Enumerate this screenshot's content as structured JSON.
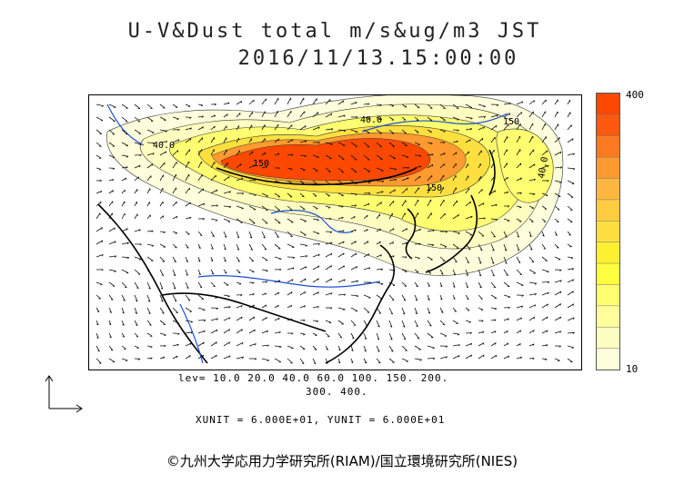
{
  "title": {
    "line1": "U-V&Dust total m/s&ug/m3 JST",
    "line2": "2016/11/13.15:00:00"
  },
  "colorbar": {
    "max_label": "400",
    "min_label": "10",
    "colors": [
      "#fefedc",
      "#fefec0",
      "#fefe9a",
      "#fefe70",
      "#fefe40",
      "#fdf030",
      "#fde040",
      "#fdcc40",
      "#fdb640",
      "#fd9a30",
      "#fd7a20",
      "#fd5a10",
      "#fc4800"
    ]
  },
  "legend": {
    "levels_line1": "lev= 10.0 20.0 40.0 60.0 100. 150. 200.",
    "levels_line2": "300. 400.",
    "units_line": "XUNIT = 6.000E+01, YUNIT = 6.000E+01"
  },
  "map_labels": [
    {
      "text": "40.0"
    },
    {
      "text": "40.0"
    },
    {
      "text": "150"
    },
    {
      "text": "150"
    },
    {
      "text": "40.0"
    },
    {
      "text": "150"
    }
  ],
  "copyright": "©九州大学応用力学研究所(RIAM)/国立環境研究所(NIES)"
}
